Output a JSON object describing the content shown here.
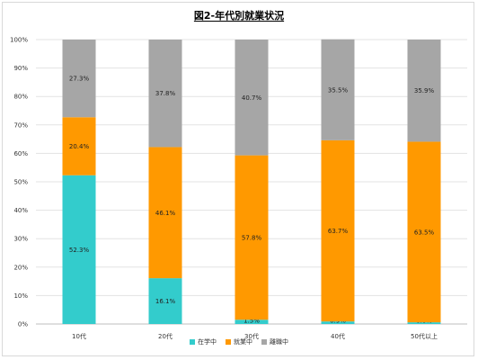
{
  "chart_data": {
    "type": "bar",
    "stacked": true,
    "title": "図2-年代別就業状況",
    "categories": [
      "10代",
      "20代",
      "30代",
      "40代",
      "50代以上"
    ],
    "series": [
      {
        "name": "在学中",
        "color": "#33cccc",
        "values": [
          52.3,
          16.1,
          1.5,
          0.9,
          0.6
        ],
        "labels": [
          "52.3%",
          "16.1%",
          "1.5%",
          "0.9%",
          "0.6%"
        ]
      },
      {
        "name": "就業中",
        "color": "#ff9900",
        "values": [
          20.4,
          46.1,
          57.8,
          63.7,
          63.5
        ],
        "labels": [
          "20.4%",
          "46.1%",
          "57.8%",
          "63.7%",
          "63.5%"
        ]
      },
      {
        "name": "離職中",
        "color": "#a6a6a6",
        "values": [
          27.3,
          37.8,
          40.7,
          35.5,
          35.9
        ],
        "labels": [
          "27.3%",
          "37.8%",
          "40.7%",
          "35.5%",
          "35.9%"
        ]
      }
    ],
    "ylim": [
      0,
      100
    ],
    "yticks": [
      "0%",
      "10%",
      "20%",
      "30%",
      "40%",
      "50%",
      "60%",
      "70%",
      "80%",
      "90%",
      "100%"
    ],
    "grid": true,
    "legend_position": "bottom"
  }
}
